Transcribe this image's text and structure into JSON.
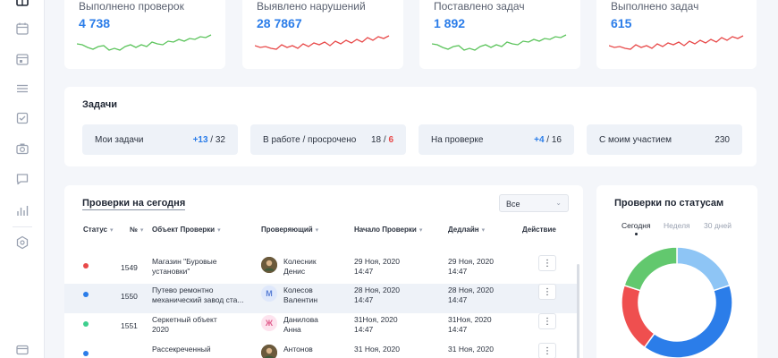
{
  "sidebar": {
    "icons": [
      "grid-icon",
      "calendar-icon",
      "calendar-check-icon",
      "menu-icon",
      "checkbox-icon",
      "camera-icon",
      "chat-icon",
      "bar-chart-icon",
      "settings-hex-icon",
      "card-icon"
    ]
  },
  "stats": [
    {
      "label": "Выполнено проверок",
      "value": "4 738",
      "trend_color": "#5cc45c"
    },
    {
      "label": "Выявлено нарушений",
      "value": "28 7867",
      "trend_color": "#e84a4a"
    },
    {
      "label": "Поставлено задач",
      "value": "1 892",
      "trend_color": "#5cc45c"
    },
    {
      "label": "Выполнено задач",
      "value": "615",
      "trend_color": "#e84a4a"
    }
  ],
  "tasks": {
    "title": "Задачи",
    "tiles": [
      {
        "label": "Мои задачи",
        "highlight": "+13",
        "rest": " / 32"
      },
      {
        "label": "В работе / просрочено",
        "plain": "18 / ",
        "alert": "6"
      },
      {
        "label": "На проверке",
        "highlight": "+4",
        "rest": " / 16"
      },
      {
        "label": "С моим участием",
        "plain": "230"
      }
    ]
  },
  "inspections": {
    "title": "Проверки на сегодня",
    "filter": "Все",
    "columns": {
      "status": "Статус",
      "number": "№",
      "object": "Объект Проверки",
      "inspector": "Проверяющий",
      "start": "Начало Проверки",
      "deadline": "Дедлайн",
      "action": "Действие"
    },
    "rows": [
      {
        "status_color": "#e84a4a",
        "number": "1549",
        "object1": "Магазин \"Буровые",
        "object2": "установки\"",
        "avatar_letter": "",
        "avatar_bg": "#6b5a3c",
        "avatar_fg": "#ffffff",
        "name1": "Колесник",
        "name2": "Денис",
        "start1": "29 Ноя, 2020",
        "start2": "14:47",
        "deadline1": "29 Ноя, 2020",
        "deadline2": "14:47"
      },
      {
        "status_color": "#2b7de9",
        "number": "1550",
        "object1": "Путево ремонтно",
        "object2": "механический завод ста...",
        "avatar_letter": "М",
        "avatar_bg": "#dfe8fb",
        "avatar_fg": "#5a7fd6",
        "name1": "Колесов",
        "name2": "Валентин",
        "start1": "28 Ноя, 2020",
        "start2": "14:47",
        "deadline1": "28 Ноя, 2020",
        "deadline2": "14:47"
      },
      {
        "status_color": "#3ecf8e",
        "number": "1551",
        "object1": "Серкетный объект",
        "object2": "2020",
        "avatar_letter": "Ж",
        "avatar_bg": "#fde3ee",
        "avatar_fg": "#e05a8a",
        "name1": "Данилова",
        "name2": "Анна",
        "start1": "31Ноя, 2020",
        "start2": "14:47",
        "deadline1": "31Ноя, 2020",
        "deadline2": "14:47"
      },
      {
        "status_color": "#2b7de9",
        "number": "",
        "object1": "Рассекреченный",
        "object2": "",
        "avatar_letter": "",
        "avatar_bg": "#6b5a3c",
        "avatar_fg": "#ffffff",
        "name1": "Антонов",
        "name2": "",
        "start1": "31 Ноя, 2020",
        "start2": "",
        "deadline1": "31 Ноя, 2020",
        "deadline2": ""
      }
    ]
  },
  "status_chart": {
    "title": "Проверки по статусам",
    "tabs": [
      "Сегодня",
      "Неделя",
      "30 дней"
    ],
    "active_tab": 0
  },
  "chart_data": {
    "type": "pie",
    "values": [
      20,
      40,
      20,
      20
    ],
    "colors": [
      "#8ec5f5",
      "#2b7de9",
      "#ef4f4f",
      "#62c86e"
    ]
  }
}
